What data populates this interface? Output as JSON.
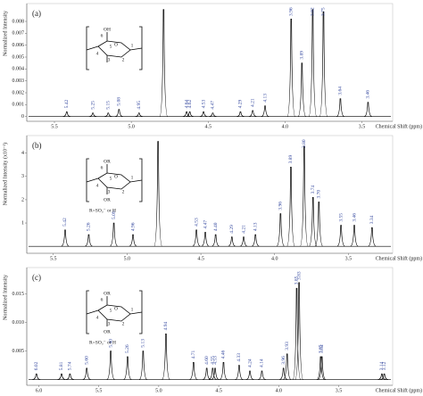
{
  "chart_data": [
    {
      "type": "spectrum",
      "panel_label": "(a)",
      "ylabel": "Normalized Intensity",
      "xlabel": "Chemical Shift (ppm)",
      "color": "#000000",
      "label_color": "#2a3f9a",
      "structure_texts": [
        "OH",
        "6",
        "5",
        "4",
        "3",
        "2",
        "1",
        "O"
      ],
      "xlim": [
        5.68,
        3.3
      ],
      "ylim": [
        -0.0004,
        0.0092
      ],
      "xticks": [
        5.5,
        {
          "value": 5,
          "label": "5.0"
        },
        4.5,
        {
          "value": 4,
          "label": "4.0"
        },
        3.5
      ],
      "yticks": [
        0,
        0.001,
        0.002,
        0.003,
        0.004,
        0.005,
        0.006,
        0.007,
        0.008
      ],
      "x": [
        5.42,
        5.25,
        5.15,
        5.08,
        4.95,
        4.79,
        4.64,
        4.62,
        4.53,
        4.47,
        4.29,
        4.21,
        4.13,
        3.96,
        3.89,
        3.82,
        3.75,
        3.64,
        3.46
      ],
      "values": [
        0.0004,
        0.0003,
        0.0003,
        0.0006,
        0.0003,
        0.009,
        0.0004,
        0.0004,
        0.0004,
        0.0003,
        0.0004,
        0.0005,
        0.0009,
        0.0082,
        0.0045,
        0.009,
        0.0088,
        0.0015,
        0.0012
      ],
      "peak_labels": [
        "5.42",
        "5.25",
        "5.15",
        "5.08",
        "4.95",
        null,
        "4.64",
        "4.62",
        "4.53",
        "4.47",
        "4.29",
        "4.21",
        "4.13",
        "3.96",
        "3.89",
        "3.82",
        "3.75",
        "3.64",
        "3.46"
      ]
    },
    {
      "type": "spectrum",
      "panel_label": "(b)",
      "ylabel": "Normalized Intensity (x10⁻³)",
      "xlabel": "Chemical Shift (ppm)",
      "color": "#000000",
      "label_color": "#2a3f9a",
      "structure_texts": [
        "OR",
        "6",
        "5",
        "4",
        "3",
        "2",
        "1",
        "O",
        "OR",
        "R=SO₃⁻ or H"
      ],
      "xlim": [
        5.68,
        3.2
      ],
      "ylim": [
        -0.3,
        4.6
      ],
      "xticks": [
        5.5,
        {
          "value": 5,
          "label": "5.0"
        },
        4.5,
        {
          "value": 4,
          "label": "4.0"
        },
        3.5
      ],
      "yticks": [
        1,
        2,
        3,
        4
      ],
      "x": [
        5.42,
        5.26,
        5.09,
        4.96,
        4.79,
        4.53,
        4.47,
        4.4,
        4.29,
        4.21,
        4.13,
        3.96,
        3.89,
        3.8,
        3.74,
        3.7,
        3.55,
        3.46,
        3.34
      ],
      "values": [
        0.7,
        0.5,
        1.0,
        0.5,
        4.5,
        0.7,
        0.6,
        0.5,
        0.4,
        0.4,
        0.5,
        1.4,
        3.4,
        4.3,
        2.1,
        1.9,
        0.9,
        0.9,
        0.8
      ],
      "peak_labels": [
        "5.42",
        "5.26",
        "5.09",
        "4.96",
        null,
        "4.53",
        "4.47",
        "4.40",
        "4.29",
        "4.21",
        "4.13",
        "3.96",
        "3.89",
        "3.80",
        "3.74",
        "3.70",
        "3.55",
        "3.46",
        "3.34"
      ]
    },
    {
      "type": "spectrum",
      "panel_label": "(c)",
      "ylabel": "Normalized Intensity",
      "xlabel": "Chemical Shift (ppm)",
      "color": "#000000",
      "label_color": "#2a3f9a",
      "structure_texts": [
        "OR",
        "6",
        "5",
        "4",
        "3",
        "2",
        "1",
        "O",
        "OR",
        "R=SO₃⁻ or H"
      ],
      "xlim": [
        6.1,
        3.05
      ],
      "ylim": [
        -0.001,
        0.019
      ],
      "xticks": [
        {
          "value": 6,
          "label": "6.0"
        },
        5.5,
        {
          "value": 5,
          "label": "5.0"
        },
        4.5,
        {
          "value": 4,
          "label": "4.0"
        },
        3.5
      ],
      "yticks": [
        0.005,
        {
          "value": 0.01,
          "label": "0.010"
        },
        0.015
      ],
      "x": [
        6.02,
        5.81,
        5.74,
        5.6,
        5.4,
        5.26,
        5.13,
        4.94,
        4.71,
        4.6,
        4.55,
        4.53,
        4.46,
        4.33,
        4.24,
        4.14,
        3.96,
        3.93,
        3.85,
        3.83,
        3.65,
        3.64,
        3.14,
        3.12
      ],
      "values": [
        0.001,
        0.001,
        0.001,
        0.002,
        0.005,
        0.004,
        0.005,
        0.008,
        0.003,
        0.002,
        0.002,
        0.002,
        0.003,
        0.0025,
        0.0015,
        0.0015,
        0.002,
        0.0045,
        0.016,
        0.017,
        0.004,
        0.004,
        0.001,
        0.001
      ],
      "peak_labels": [
        "6.02",
        "5.81",
        "5.74",
        "5.60",
        "5.40",
        "5.26",
        "5.13",
        "4.94",
        "4.71",
        "4.60",
        "4.55",
        "4.53",
        "4.46",
        "4.33",
        "4.24",
        "4.14",
        "3.96",
        "3.93",
        "3.85",
        "3.83",
        "3.65",
        "3.64",
        "3.14",
        "3.12"
      ]
    }
  ]
}
